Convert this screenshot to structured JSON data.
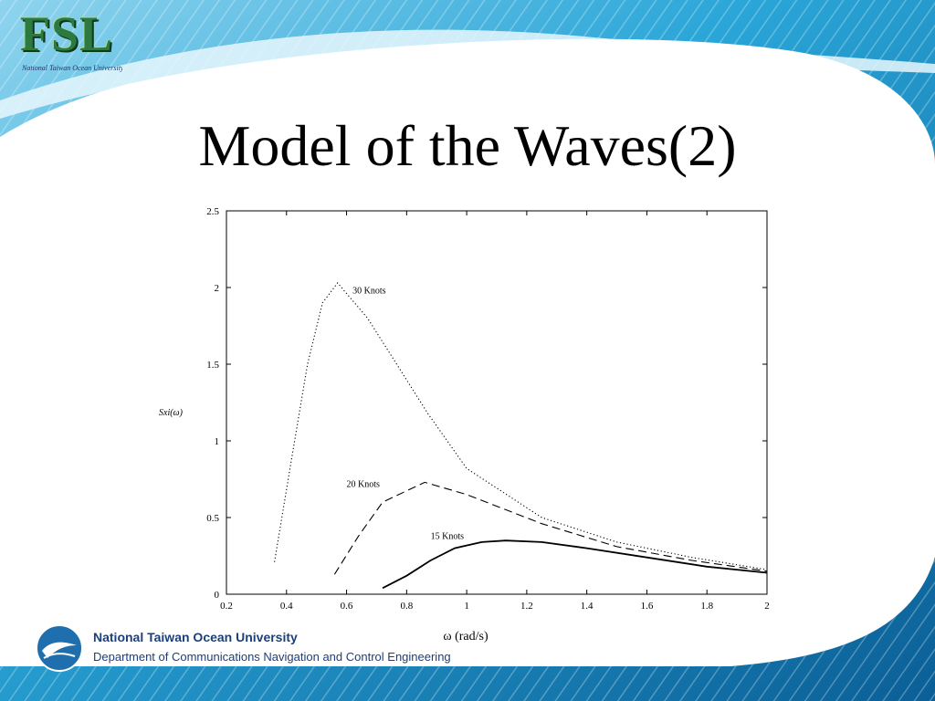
{
  "slide": {
    "title": "Model of the Waves(2)",
    "logo_text": "FSL",
    "logo_tagline": "National Taiwan Ocean University",
    "footer_line1": "National Taiwan Ocean University",
    "footer_line2": "Department of Communications Navigation and Control Engineering"
  },
  "colors": {
    "background_blue": "#1f8fc0",
    "panel": "#ffffff",
    "footer_text": "#1c3f7a"
  },
  "chart_data": {
    "type": "line",
    "xlabel": "ω (rad/s)",
    "ylabel": "Sxi(ω)",
    "xlim": [
      0.2,
      2
    ],
    "ylim": [
      0,
      2.5
    ],
    "xticks": [
      "0.2",
      "0.4",
      "0.6",
      "0.8",
      "1",
      "1.2",
      "1.4",
      "1.6",
      "1.8",
      "2"
    ],
    "yticks": [
      "0",
      "0.5",
      "1",
      "1.5",
      "2",
      "2.5"
    ],
    "grid": false,
    "series": [
      {
        "name": "30 Knots",
        "style": "dotted",
        "x": [
          0.36,
          0.42,
          0.47,
          0.52,
          0.57,
          0.67,
          0.87,
          1.0,
          1.25,
          1.5,
          1.75,
          2.0
        ],
        "y": [
          0.21,
          0.92,
          1.5,
          1.9,
          2.03,
          1.8,
          1.18,
          0.82,
          0.5,
          0.34,
          0.24,
          0.16
        ]
      },
      {
        "name": "20 Knots",
        "style": "dashed",
        "x": [
          0.56,
          0.64,
          0.72,
          0.86,
          1.0,
          1.25,
          1.5,
          1.75,
          2.0
        ],
        "y": [
          0.13,
          0.38,
          0.6,
          0.73,
          0.65,
          0.46,
          0.31,
          0.22,
          0.15
        ]
      },
      {
        "name": "15 Knots",
        "style": "solid",
        "x": [
          0.72,
          0.8,
          0.88,
          0.96,
          1.05,
          1.13,
          1.25,
          1.4,
          1.6,
          1.8,
          2.0
        ],
        "y": [
          0.04,
          0.12,
          0.22,
          0.3,
          0.34,
          0.35,
          0.34,
          0.3,
          0.24,
          0.18,
          0.14
        ]
      }
    ],
    "annotations": [
      {
        "text": "30 Knots",
        "x": 0.62,
        "y": 1.96
      },
      {
        "text": "20 Knots",
        "x": 0.6,
        "y": 0.7
      },
      {
        "text": "15 Knots",
        "x": 0.88,
        "y": 0.36
      }
    ]
  }
}
